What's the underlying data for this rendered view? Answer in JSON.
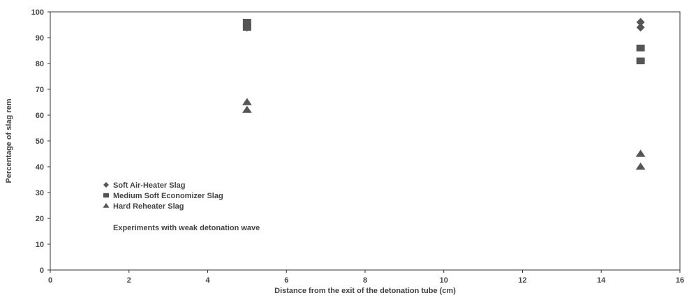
{
  "chart_data": {
    "type": "scatter",
    "xlabel": "Distance from the exit of the detonation tube (cm)",
    "ylabel": "Percentage of slag rem",
    "xlim": [
      0,
      16
    ],
    "ylim": [
      0,
      100
    ],
    "xticks": [
      0,
      2,
      4,
      6,
      8,
      10,
      12,
      14,
      16
    ],
    "yticks": [
      0,
      10,
      20,
      30,
      40,
      50,
      60,
      70,
      80,
      90,
      100
    ],
    "grid": false,
    "legend_position": "left",
    "series": [
      {
        "name": "Soft Air-Heater Slag",
        "marker": "diamond",
        "points": [
          [
            5,
            95
          ],
          [
            5,
            94
          ],
          [
            15,
            96
          ],
          [
            15,
            94
          ]
        ]
      },
      {
        "name": "Medium Soft Economizer Slag",
        "marker": "square",
        "points": [
          [
            5,
            96
          ],
          [
            5,
            94
          ],
          [
            15,
            86
          ],
          [
            15,
            81
          ]
        ]
      },
      {
        "name": "Hard Reheater Slag",
        "marker": "triangle",
        "points": [
          [
            5,
            65
          ],
          [
            5,
            62
          ],
          [
            15,
            45
          ],
          [
            15,
            40
          ]
        ]
      }
    ],
    "annotation": "Experiments with weak detonation wave"
  },
  "colors": {
    "marker": "#555555",
    "axis": "#333333",
    "text": "#444444"
  }
}
